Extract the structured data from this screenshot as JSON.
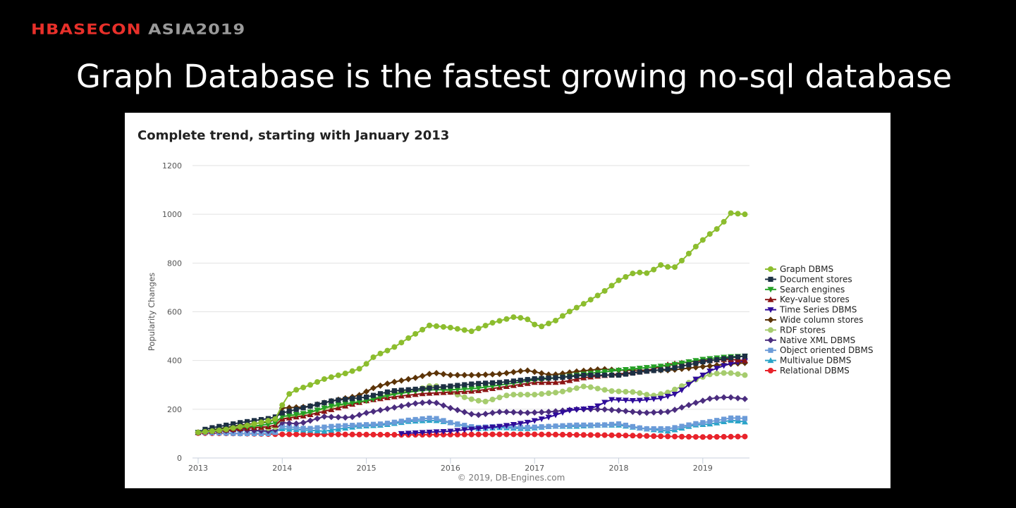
{
  "header": {
    "brand_red": "HBASECON",
    "brand_gray": "ASIA2019",
    "slide_title": "Graph Database is the fastest growing no-sql database"
  },
  "chart_data": {
    "type": "line",
    "title": "Complete trend, starting with January 2013",
    "xlabel": "",
    "ylabel": "Popularity Changes",
    "xlim": [
      2013,
      2019.55
    ],
    "ylim": [
      0,
      1200
    ],
    "x_ticks": [
      "2013",
      "2014",
      "2015",
      "2016",
      "2017",
      "2018",
      "2019"
    ],
    "y_ticks": [
      "0",
      "200",
      "400",
      "600",
      "800",
      "1000",
      "1200"
    ],
    "grid": true,
    "legend_position": "right",
    "credit": "© 2019, DB-Engines.com",
    "sampling": "monthly, interpolated from key points [year, value]",
    "series": [
      {
        "name": "Graph DBMS",
        "color": "#8cbd2e",
        "marker": "circle",
        "points": [
          [
            2013.0,
            105
          ],
          [
            2013.3,
            115
          ],
          [
            2013.6,
            135
          ],
          [
            2013.8,
            150
          ],
          [
            2013.92,
            160
          ],
          [
            2014.0,
            217
          ],
          [
            2014.1,
            272
          ],
          [
            2014.3,
            295
          ],
          [
            2014.5,
            324
          ],
          [
            2014.75,
            347
          ],
          [
            2014.95,
            370
          ],
          [
            2015.1,
            419
          ],
          [
            2015.3,
            448
          ],
          [
            2015.5,
            492
          ],
          [
            2015.75,
            544
          ],
          [
            2016.0,
            535
          ],
          [
            2016.25,
            520
          ],
          [
            2016.5,
            555
          ],
          [
            2016.75,
            578
          ],
          [
            2016.9,
            573
          ],
          [
            2017.05,
            535
          ],
          [
            2017.25,
            564
          ],
          [
            2017.4,
            598
          ],
          [
            2017.6,
            636
          ],
          [
            2017.8,
            677
          ],
          [
            2018.0,
            729
          ],
          [
            2018.2,
            763
          ],
          [
            2018.35,
            758
          ],
          [
            2018.5,
            792
          ],
          [
            2018.65,
            778
          ],
          [
            2018.75,
            810
          ],
          [
            2018.9,
            862
          ],
          [
            2019.05,
            911
          ],
          [
            2019.2,
            948
          ],
          [
            2019.35,
            1012
          ],
          [
            2019.45,
            998
          ],
          [
            2019.5,
            1000
          ]
        ]
      },
      {
        "name": "Document stores",
        "color": "#1c2f43",
        "marker": "square",
        "points": [
          [
            2013.0,
            105
          ],
          [
            2013.1,
            120
          ],
          [
            2013.5,
            145
          ],
          [
            2013.9,
            165
          ],
          [
            2014.0,
            185
          ],
          [
            2014.3,
            210
          ],
          [
            2014.6,
            235
          ],
          [
            2015.0,
            250
          ],
          [
            2015.3,
            275
          ],
          [
            2015.7,
            285
          ],
          [
            2016.0,
            295
          ],
          [
            2016.3,
            305
          ],
          [
            2016.6,
            310
          ],
          [
            2017.0,
            325
          ],
          [
            2017.3,
            330
          ],
          [
            2017.6,
            340
          ],
          [
            2018.0,
            340
          ],
          [
            2018.3,
            355
          ],
          [
            2018.6,
            365
          ],
          [
            2019.0,
            395
          ],
          [
            2019.3,
            410
          ],
          [
            2019.5,
            418
          ]
        ]
      },
      {
        "name": "Search engines",
        "color": "#25a025",
        "marker": "triangle-down",
        "points": [
          [
            2013.0,
            105
          ],
          [
            2013.5,
            125
          ],
          [
            2013.9,
            140
          ],
          [
            2014.0,
            170
          ],
          [
            2014.3,
            185
          ],
          [
            2014.6,
            215
          ],
          [
            2015.0,
            235
          ],
          [
            2015.3,
            260
          ],
          [
            2015.7,
            280
          ],
          [
            2016.0,
            280
          ],
          [
            2016.3,
            285
          ],
          [
            2016.6,
            300
          ],
          [
            2017.0,
            320
          ],
          [
            2017.3,
            330
          ],
          [
            2017.6,
            345
          ],
          [
            2018.0,
            360
          ],
          [
            2018.3,
            370
          ],
          [
            2018.6,
            380
          ],
          [
            2019.0,
            405
          ],
          [
            2019.3,
            415
          ],
          [
            2019.5,
            418
          ]
        ]
      },
      {
        "name": "Key-value stores",
        "color": "#8b1414",
        "marker": "triangle",
        "points": [
          [
            2013.0,
            105
          ],
          [
            2013.5,
            120
          ],
          [
            2013.9,
            130
          ],
          [
            2014.0,
            160
          ],
          [
            2014.3,
            175
          ],
          [
            2014.6,
            200
          ],
          [
            2015.0,
            235
          ],
          [
            2015.3,
            250
          ],
          [
            2015.7,
            265
          ],
          [
            2016.0,
            270
          ],
          [
            2016.3,
            275
          ],
          [
            2016.6,
            290
          ],
          [
            2017.0,
            310
          ],
          [
            2017.3,
            310
          ],
          [
            2017.6,
            330
          ],
          [
            2018.0,
            345
          ],
          [
            2018.3,
            355
          ],
          [
            2018.6,
            385
          ],
          [
            2019.0,
            400
          ],
          [
            2019.3,
            405
          ],
          [
            2019.5,
            400
          ]
        ]
      },
      {
        "name": "Time Series DBMS",
        "color": "#2f0c9a",
        "marker": "triangle-down",
        "points": [
          [
            2015.4,
            100
          ],
          [
            2015.7,
            105
          ],
          [
            2016.0,
            110
          ],
          [
            2016.3,
            120
          ],
          [
            2016.6,
            130
          ],
          [
            2016.9,
            145
          ],
          [
            2017.2,
            170
          ],
          [
            2017.4,
            195
          ],
          [
            2017.7,
            205
          ],
          [
            2017.9,
            240
          ],
          [
            2018.2,
            235
          ],
          [
            2018.5,
            245
          ],
          [
            2018.7,
            265
          ],
          [
            2018.9,
            320
          ],
          [
            2019.1,
            360
          ],
          [
            2019.3,
            385
          ],
          [
            2019.5,
            398
          ]
        ]
      },
      {
        "name": "Wide column stores",
        "color": "#5c3408",
        "marker": "diamond",
        "points": [
          [
            2013.0,
            105
          ],
          [
            2013.5,
            135
          ],
          [
            2013.9,
            150
          ],
          [
            2014.0,
            205
          ],
          [
            2014.3,
            210
          ],
          [
            2014.6,
            235
          ],
          [
            2014.9,
            255
          ],
          [
            2015.1,
            290
          ],
          [
            2015.3,
            310
          ],
          [
            2015.6,
            330
          ],
          [
            2015.8,
            350
          ],
          [
            2016.0,
            340
          ],
          [
            2016.3,
            340
          ],
          [
            2016.6,
            345
          ],
          [
            2016.9,
            360
          ],
          [
            2017.2,
            340
          ],
          [
            2017.5,
            355
          ],
          [
            2017.8,
            365
          ],
          [
            2018.0,
            360
          ],
          [
            2018.3,
            360
          ],
          [
            2018.6,
            360
          ],
          [
            2019.0,
            375
          ],
          [
            2019.3,
            385
          ],
          [
            2019.5,
            390
          ]
        ]
      },
      {
        "name": "RDF stores",
        "color": "#a6cc6e",
        "marker": "circle",
        "points": [
          [
            2013.0,
            105
          ],
          [
            2013.3,
            115
          ],
          [
            2013.6,
            130
          ],
          [
            2013.9,
            120
          ],
          [
            2014.0,
            160
          ],
          [
            2014.3,
            185
          ],
          [
            2014.6,
            210
          ],
          [
            2015.0,
            235
          ],
          [
            2015.3,
            265
          ],
          [
            2015.6,
            280
          ],
          [
            2015.8,
            300
          ],
          [
            2016.0,
            270
          ],
          [
            2016.2,
            245
          ],
          [
            2016.4,
            230
          ],
          [
            2016.7,
            260
          ],
          [
            2017.0,
            260
          ],
          [
            2017.3,
            270
          ],
          [
            2017.6,
            295
          ],
          [
            2017.9,
            275
          ],
          [
            2018.2,
            270
          ],
          [
            2018.4,
            255
          ],
          [
            2018.6,
            270
          ],
          [
            2018.9,
            320
          ],
          [
            2019.1,
            345
          ],
          [
            2019.3,
            350
          ],
          [
            2019.5,
            340
          ]
        ]
      },
      {
        "name": "Native XML DBMS",
        "color": "#4b2d7f",
        "marker": "diamond",
        "points": [
          [
            2013.0,
            105
          ],
          [
            2013.5,
            115
          ],
          [
            2013.9,
            110
          ],
          [
            2014.0,
            145
          ],
          [
            2014.2,
            140
          ],
          [
            2014.5,
            170
          ],
          [
            2014.8,
            165
          ],
          [
            2015.0,
            185
          ],
          [
            2015.3,
            205
          ],
          [
            2015.6,
            225
          ],
          [
            2015.8,
            230
          ],
          [
            2016.0,
            205
          ],
          [
            2016.3,
            175
          ],
          [
            2016.6,
            190
          ],
          [
            2016.9,
            185
          ],
          [
            2017.2,
            190
          ],
          [
            2017.5,
            200
          ],
          [
            2017.8,
            200
          ],
          [
            2018.0,
            195
          ],
          [
            2018.3,
            185
          ],
          [
            2018.6,
            190
          ],
          [
            2018.9,
            225
          ],
          [
            2019.1,
            245
          ],
          [
            2019.3,
            250
          ],
          [
            2019.5,
            242
          ]
        ]
      },
      {
        "name": "Object oriented DBMS",
        "color": "#6b9bd8",
        "marker": "square",
        "points": [
          [
            2013.0,
            105
          ],
          [
            2013.5,
            100
          ],
          [
            2013.9,
            100
          ],
          [
            2014.0,
            130
          ],
          [
            2014.3,
            120
          ],
          [
            2014.6,
            130
          ],
          [
            2014.9,
            135
          ],
          [
            2015.2,
            140
          ],
          [
            2015.5,
            155
          ],
          [
            2015.8,
            165
          ],
          [
            2016.0,
            145
          ],
          [
            2016.3,
            125
          ],
          [
            2016.6,
            130
          ],
          [
            2016.9,
            125
          ],
          [
            2017.2,
            130
          ],
          [
            2017.5,
            135
          ],
          [
            2017.8,
            135
          ],
          [
            2018.0,
            140
          ],
          [
            2018.3,
            120
          ],
          [
            2018.6,
            120
          ],
          [
            2018.9,
            140
          ],
          [
            2019.1,
            150
          ],
          [
            2019.35,
            165
          ],
          [
            2019.5,
            162
          ]
        ]
      },
      {
        "name": "Multivalue DBMS",
        "color": "#2aa4c8",
        "marker": "triangle",
        "points": [
          [
            2013.0,
            105
          ],
          [
            2013.4,
            120
          ],
          [
            2013.9,
            105
          ],
          [
            2014.0,
            120
          ],
          [
            2014.5,
            110
          ],
          [
            2014.9,
            130
          ],
          [
            2015.2,
            135
          ],
          [
            2015.5,
            150
          ],
          [
            2015.8,
            155
          ],
          [
            2016.0,
            145
          ],
          [
            2016.3,
            120
          ],
          [
            2016.6,
            125
          ],
          [
            2016.9,
            120
          ],
          [
            2017.2,
            130
          ],
          [
            2017.5,
            130
          ],
          [
            2017.8,
            135
          ],
          [
            2018.0,
            135
          ],
          [
            2018.3,
            120
          ],
          [
            2018.6,
            110
          ],
          [
            2018.9,
            135
          ],
          [
            2019.1,
            140
          ],
          [
            2019.35,
            155
          ],
          [
            2019.5,
            148
          ]
        ]
      },
      {
        "name": "Relational DBMS",
        "color": "#e8232b",
        "marker": "circle",
        "points": [
          [
            2013.0,
            102
          ],
          [
            2013.5,
            100
          ],
          [
            2014.0,
            97
          ],
          [
            2014.5,
            97
          ],
          [
            2015.0,
            96
          ],
          [
            2015.5,
            95
          ],
          [
            2016.0,
            96
          ],
          [
            2016.5,
            97
          ],
          [
            2017.0,
            97
          ],
          [
            2017.5,
            95
          ],
          [
            2018.0,
            93
          ],
          [
            2018.5,
            89
          ],
          [
            2019.0,
            86
          ],
          [
            2019.5,
            88
          ]
        ]
      }
    ]
  }
}
